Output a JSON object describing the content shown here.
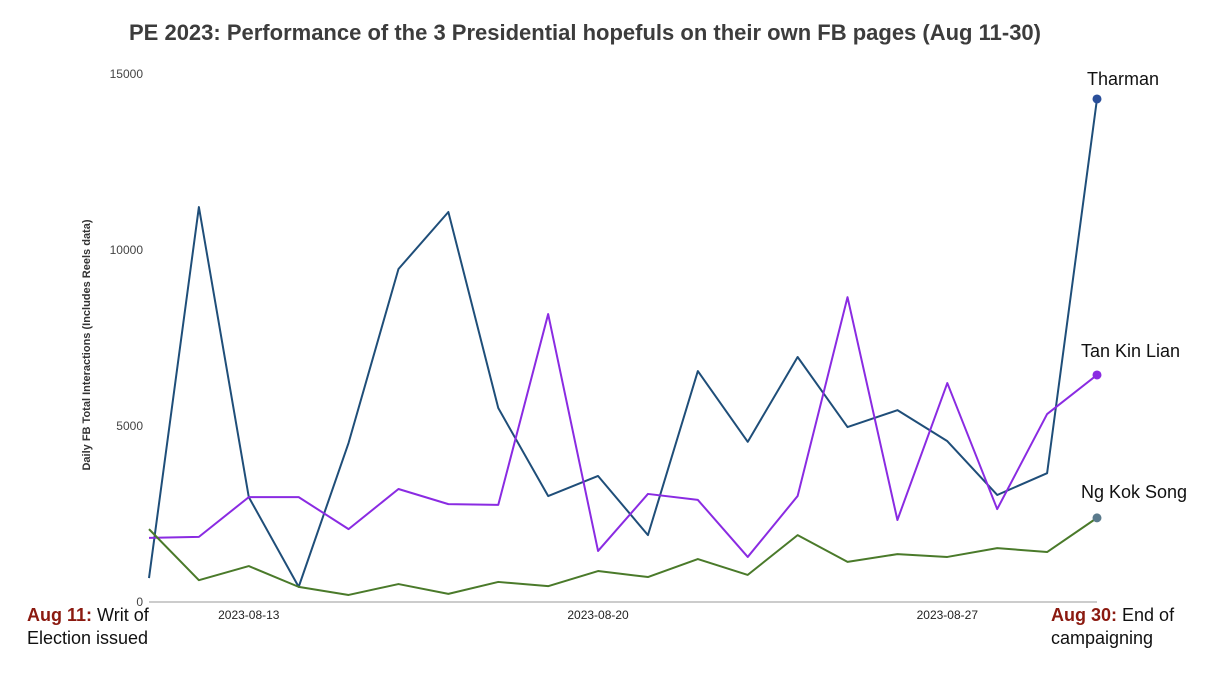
{
  "chart_data": {
    "type": "line",
    "title": "PE 2023: Performance of the 3 Presidential hopefuls on their own FB pages (Aug 11-30)",
    "xlabel": "",
    "ylabel": "Daily FB Total Interactions (Includes Reels data)",
    "ylim": [
      0,
      15000
    ],
    "yticks": [
      "0",
      "5000",
      "10000",
      "15000"
    ],
    "ytick_values": [
      0,
      5000,
      10000,
      15000
    ],
    "xticks": [
      "2023-08-13",
      "2023-08-20",
      "2023-08-27"
    ],
    "xtick_index": [
      2,
      9,
      16
    ],
    "x": [
      "2023-08-11",
      "2023-08-12",
      "2023-08-13",
      "2023-08-14",
      "2023-08-15",
      "2023-08-16",
      "2023-08-17",
      "2023-08-18",
      "2023-08-19",
      "2023-08-20",
      "2023-08-21",
      "2023-08-22",
      "2023-08-23",
      "2023-08-24",
      "2023-08-25",
      "2023-08-26",
      "2023-08-27",
      "2023-08-28",
      "2023-08-29",
      "2023-08-30"
    ],
    "grid": false,
    "series": [
      {
        "name": "Tharman",
        "color": "#1f4e79",
        "dot": "#2a4f9a",
        "values": [
          680,
          11220,
          2980,
          430,
          4520,
          9460,
          11080,
          5510,
          3010,
          3580,
          1900,
          6560,
          4550,
          6960,
          4970,
          5450,
          4570,
          3040,
          3660,
          14290
        ]
      },
      {
        "name": "Tan Kin Lian",
        "color": "#8a2be2",
        "dot": "#8a2be2",
        "values": [
          1820,
          1850,
          2980,
          2980,
          2070,
          3210,
          2780,
          2760,
          8180,
          1450,
          3070,
          2900,
          1280,
          3010,
          8660,
          2330,
          6220,
          2640,
          5340,
          6450
        ]
      },
      {
        "name": "Ng Kok Song",
        "color": "#4a7a2a",
        "dot": "#5a7a8c",
        "values": [
          2070,
          620,
          1020,
          430,
          200,
          510,
          230,
          570,
          450,
          880,
          710,
          1220,
          770,
          1900,
          1140,
          1360,
          1280,
          1530,
          1420,
          2390
        ]
      }
    ],
    "annotations": {
      "start": {
        "date": "Aug 11:",
        "text1": "Writ of",
        "text2": "Election issued"
      },
      "end": {
        "date": "Aug 30:",
        "text1": "End of",
        "text2": "campaigning"
      }
    }
  }
}
